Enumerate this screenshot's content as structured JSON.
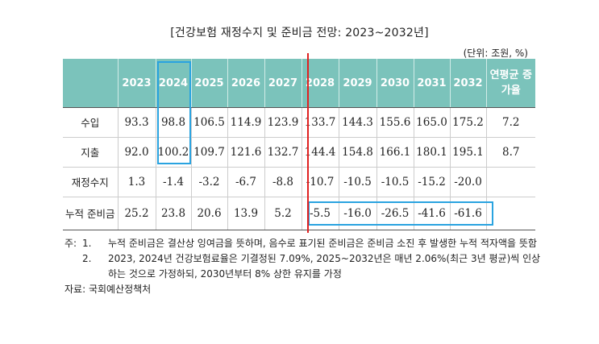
{
  "title": "[건강보험 재정수지 및 준비금 전망: 2023~2032년]",
  "unit": "(단위: 조원, %)",
  "table": {
    "headers": [
      "",
      "2023",
      "2024",
      "2025",
      "2026",
      "2027",
      "2028",
      "2029",
      "2030",
      "2031",
      "2032",
      "연평균 증가율"
    ],
    "rows": [
      {
        "label": "수입",
        "values": [
          "93.3",
          "98.8",
          "106.5",
          "114.9",
          "123.9",
          "133.7",
          "144.3",
          "155.6",
          "165.0",
          "175.2",
          "7.2"
        ]
      },
      {
        "label": "지출",
        "values": [
          "92.0",
          "100.2",
          "109.7",
          "121.6",
          "132.7",
          "144.4",
          "154.8",
          "166.1",
          "180.1",
          "195.1",
          "8.7"
        ]
      },
      {
        "label": "재정수지",
        "values": [
          "1.3",
          "-1.4",
          "-3.2",
          "-6.7",
          "-8.8",
          "-10.7",
          "-10.5",
          "-10.5",
          "-15.2",
          "-20.0",
          ""
        ]
      },
      {
        "label": "누적 준비금",
        "values": [
          "25.2",
          "23.8",
          "20.6",
          "13.9",
          "5.2",
          "-5.5",
          "-16.0",
          "-26.5",
          "-41.6",
          "-61.6",
          ""
        ]
      }
    ]
  },
  "notes": {
    "lead": "주:",
    "items": [
      {
        "num": "1.",
        "text": "누적 준비금은 결산상 잉여금을 뜻하며, 음수로 표기된 준비금은 준비금 소진 후 발생한 누적 적자액을 뜻함"
      },
      {
        "num": "2.",
        "text": "2023, 2024년 건강보험료율은 기결정된 7.09%, 2025~2032년은 매년 2.06%(최근 3년 평균)씩 인상하는 것으로 가정하되, 2030년부터 8% 상한 유지를 가정"
      }
    ]
  },
  "source": "자료: 국회예산정책처",
  "colors": {
    "header_bg": "#7bc3bb",
    "highlight": "#2aa3e0",
    "divider": "#e02020"
  }
}
